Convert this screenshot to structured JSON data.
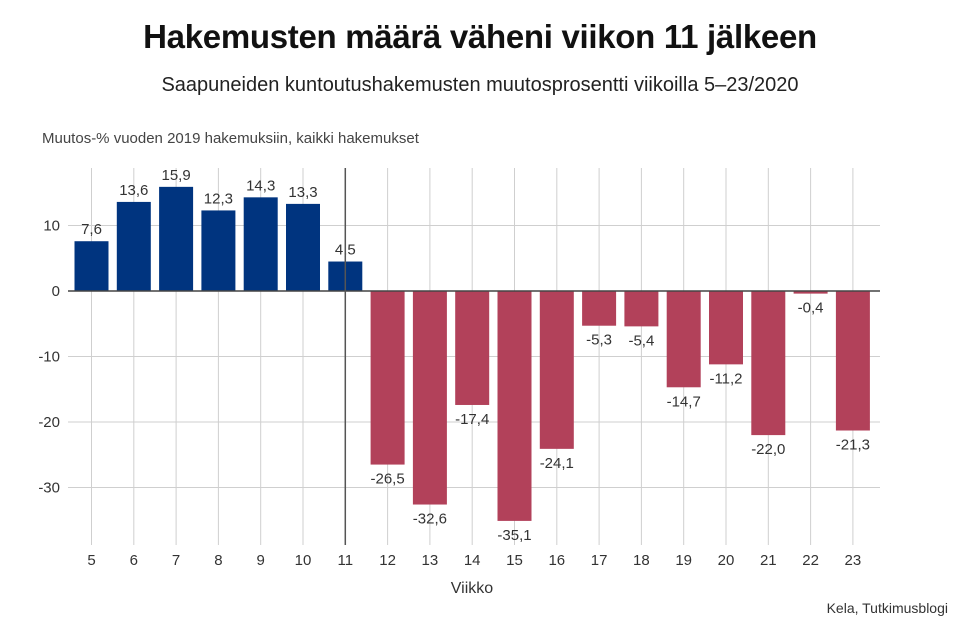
{
  "title": "Hakemusten määrä väheni viikon 11 jälkeen",
  "subtitle": "Saapuneiden kuntoutushakemusten muutosprosentti viikoilla 5–23/2020",
  "source": "Kela, Tutkimusblogi",
  "colors": {
    "before": "#00347f",
    "after": "#b2415a",
    "grid": "#cfcfcf",
    "zero": "#444444"
  },
  "chart_data": {
    "type": "bar",
    "title": "Hakemusten määrä väheni viikon 11 jälkeen",
    "subtitle": "Saapuneiden kuntoutushakemusten muutosprosentti viikoilla 5–23/2020",
    "ylabel": "Muutos-% vuoden 2019 hakemuksiin, kaikki hakemukset",
    "xlabel": "Viikko",
    "categories": [
      "5",
      "6",
      "7",
      "8",
      "9",
      "10",
      "11",
      "12",
      "13",
      "14",
      "15",
      "16",
      "17",
      "18",
      "19",
      "20",
      "21",
      "22",
      "23"
    ],
    "values": [
      7.6,
      13.6,
      15.9,
      12.3,
      14.3,
      13.3,
      4.5,
      -26.5,
      -32.6,
      -17.4,
      -35.1,
      -24.1,
      -5.3,
      -5.4,
      -14.7,
      -11.2,
      -22.0,
      -0.4,
      -21.3
    ],
    "value_labels": [
      "7,6",
      "13,6",
      "15,9",
      "12,3",
      "14,3",
      "13,3",
      "4,5",
      "-26,5",
      "-32,6",
      "-17,4",
      "-35,1",
      "-24,1",
      "-5,3",
      "-5,4",
      "-14,7",
      "-11,2",
      "-22,0",
      "-0,4",
      "-21,3"
    ],
    "yticks": [
      10,
      0,
      -10,
      -20,
      -30
    ],
    "ylim": [
      -39,
      18
    ],
    "reference_line_at": "11",
    "grid": true
  }
}
